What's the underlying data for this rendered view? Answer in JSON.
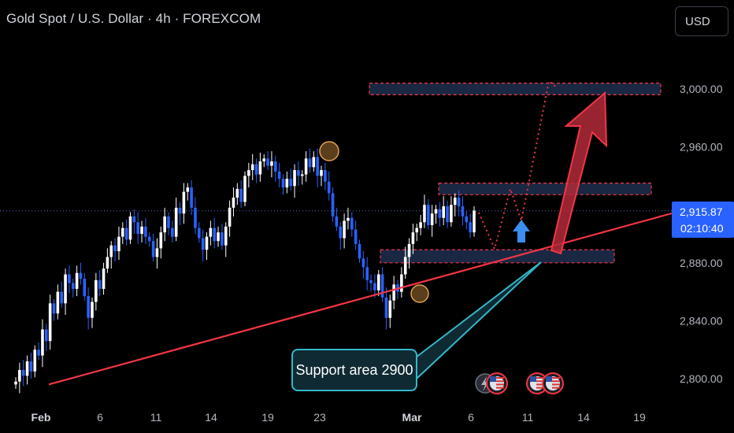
{
  "header": {
    "title": "Gold Spot / U.S. Dollar · 4h · FOREXCOM"
  },
  "currency_button": {
    "label": "USD"
  },
  "last_price": {
    "value": "2,915.87",
    "countdown": "02:10:40"
  },
  "annotation": {
    "text": "Support area 2900"
  },
  "chart_data": {
    "type": "candlestick",
    "symbol": "Gold Spot / U.S. Dollar",
    "timeframe": "4h",
    "exchange": "FOREXCOM",
    "currency": "USD",
    "y_ticks": [
      {
        "label": "3,000.00",
        "value": 3000
      },
      {
        "label": "2,960.00",
        "value": 2960
      },
      {
        "label": "2,880.00",
        "value": 2880
      },
      {
        "label": "2,840.00",
        "value": 2840
      },
      {
        "label": "2,800.00",
        "value": 2800
      }
    ],
    "ylim": [
      2785,
      3018
    ],
    "x_ticks": [
      "Feb",
      "6",
      "11",
      "14",
      "19",
      "23",
      "Mar",
      "6",
      "11",
      "14",
      "19"
    ],
    "last_price": 2915.87,
    "closes": [
      2798,
      2806,
      2802,
      2812,
      2805,
      2820,
      2816,
      2834,
      2826,
      2852,
      2845,
      2860,
      2852,
      2872,
      2866,
      2862,
      2873,
      2869,
      2857,
      2842,
      2853,
      2868,
      2862,
      2876,
      2884,
      2892,
      2888,
      2898,
      2904,
      2896,
      2912,
      2908,
      2900,
      2905,
      2898,
      2895,
      2884,
      2890,
      2901,
      2912,
      2904,
      2898,
      2918,
      2914,
      2929,
      2932,
      2918,
      2904,
      2897,
      2889,
      2898,
      2904,
      2895,
      2901,
      2892,
      2905,
      2918,
      2925,
      2931,
      2922,
      2940,
      2944,
      2948,
      2941,
      2950,
      2952,
      2947,
      2950,
      2943,
      2938,
      2932,
      2938,
      2933,
      2944,
      2940,
      2941,
      2952,
      2946,
      2953,
      2940,
      2944,
      2936,
      2928,
      2912,
      2905,
      2897,
      2909,
      2911,
      2903,
      2893,
      2883,
      2877,
      2868,
      2866,
      2861,
      2872,
      2856,
      2842,
      2854,
      2865,
      2860,
      2872,
      2884,
      2893,
      2901,
      2904,
      2908,
      2920,
      2906,
      2914,
      2917,
      2911,
      2919,
      2908,
      2920,
      2925,
      2919,
      2912,
      2908,
      2901,
      2916
    ],
    "levels": [
      {
        "name": "resistance-zone",
        "low": 2996,
        "high": 3004
      },
      {
        "name": "mid-zone",
        "low": 2927,
        "high": 2935
      },
      {
        "name": "support-zone",
        "low": 2880,
        "high": 2889
      }
    ],
    "trendline": [
      {
        "x": "Feb",
        "y": 2796
      },
      {
        "x": "right-edge",
        "y": 2921
      }
    ],
    "colors": {
      "up": "#ffffff",
      "down": "#2962ff",
      "trendline": "#f23645",
      "zone_fill": "#1e2f4f",
      "zone_border": "#f23645",
      "arrow": "#b22a38",
      "callout_border": "#33b8c8",
      "last_price_bg": "#2962ff"
    }
  }
}
